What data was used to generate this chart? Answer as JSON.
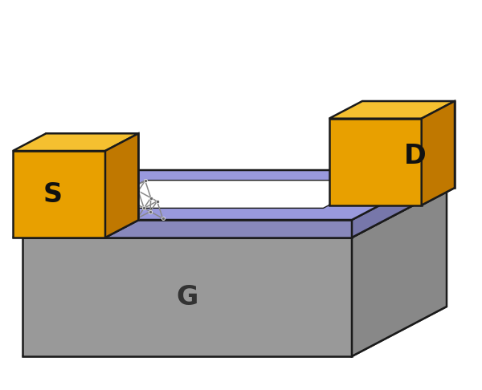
{
  "figsize": [
    6.0,
    4.86
  ],
  "dpi": 100,
  "bg_color": "#ffffff",
  "colors": {
    "gold_front": "#E8A000",
    "gold_top": "#F5C030",
    "gold_right": "#C07800",
    "gold_left": "#B06800",
    "sio2_top": "#9999DD",
    "sio2_front": "#8888BB",
    "sio2_right": "#7777AA",
    "si_top": "#AAAAAA",
    "si_front": "#999999",
    "si_right": "#888888",
    "si_left": "#777777",
    "graphene_bond": "#888888",
    "graphene_atom": "#666666",
    "outline": "#1a1a1a",
    "label_dark": "#111111",
    "label_g": "#333333"
  },
  "labels": {
    "S": "S",
    "D": "D",
    "G": "G"
  },
  "label_fontsize": 24
}
